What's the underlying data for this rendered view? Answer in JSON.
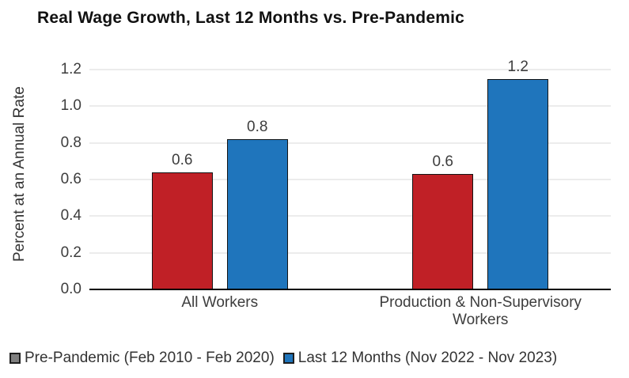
{
  "chart_data": {
    "type": "bar",
    "title": "Real Wage Growth, Last 12 Months vs. Pre-Pandemic",
    "xlabel": "",
    "ylabel": "Percent at an Annual Rate",
    "categories": [
      "All Workers",
      "Production & Non-Supervisory Workers"
    ],
    "series": [
      {
        "name": "Pre-Pandemic (Feb 2010 - Feb 2020)",
        "values": [
          0.64,
          0.63
        ],
        "labels": [
          "0.6",
          "0.6"
        ],
        "color": "#C02026",
        "legend_swatch_color": "#808080"
      },
      {
        "name": "Last 12 Months (Nov 2022 - Nov 2023)",
        "values": [
          0.82,
          1.15
        ],
        "labels": [
          "0.8",
          "1.2"
        ],
        "color": "#1F75BC",
        "legend_swatch_color": "#1F75BC"
      }
    ],
    "yticks": [
      0,
      0.2,
      0.4,
      0.6,
      0.8,
      1.0,
      1.2
    ],
    "ylim": [
      0,
      1.26
    ],
    "grid": true,
    "gridline_color": "#D9D9D9",
    "axis_color": "#000000",
    "text_color": "#3D3D3D",
    "legend_position": "bottom-left"
  }
}
